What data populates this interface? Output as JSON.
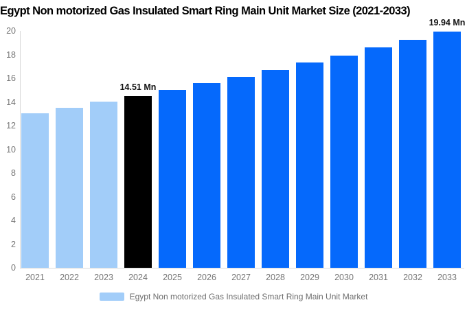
{
  "title": "Egypt Non motorized Gas Insulated Smart Ring Main Unit Market Size (2021-2033)",
  "chart_data": {
    "type": "bar",
    "title": "Egypt Non motorized Gas Insulated Smart Ring Main Unit Market Size (2021-2033)",
    "categories": [
      "2021",
      "2022",
      "2023",
      "2024",
      "2025",
      "2026",
      "2027",
      "2028",
      "2029",
      "2030",
      "2031",
      "2032",
      "2033"
    ],
    "values": [
      13.05,
      13.52,
      14.01,
      14.51,
      15.03,
      15.57,
      16.13,
      16.71,
      17.31,
      17.94,
      18.58,
      19.25,
      19.94
    ],
    "unit": "Mn",
    "annotations": {
      "2024": "14.51 Mn",
      "2033": "19.94 Mn"
    },
    "bar_colors": [
      "#a2cdf9",
      "#a2cdf9",
      "#a2cdf9",
      "#000000",
      "#0569fc",
      "#0569fc",
      "#0569fc",
      "#0569fc",
      "#0569fc",
      "#0569fc",
      "#0569fc",
      "#0569fc",
      "#0569fc"
    ],
    "color_roles": {
      "historical_2021_2023": "#a2cdf9",
      "current_year_2024": "#000000",
      "forecast_2025_2033": "#0569fc"
    },
    "xlabel": "",
    "ylabel": "",
    "ylim": [
      0,
      20
    ],
    "yticks": [
      0,
      2,
      4,
      6,
      8,
      10,
      12,
      14,
      16,
      18,
      20
    ],
    "ytick_step": 2,
    "grid": false,
    "legend": [
      "Egypt Non motorized Gas Insulated Smart Ring Main Unit Market"
    ],
    "legend_position": "bottom",
    "legend_swatch_color": "#a2cdf9",
    "axis_text_color": "#757575",
    "annotation_text_color": "#111111"
  }
}
